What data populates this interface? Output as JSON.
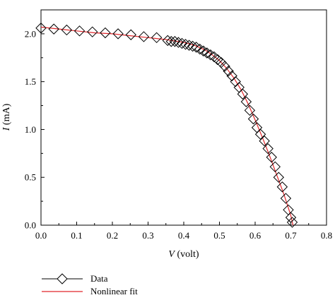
{
  "chart_data": {
    "type": "scatter",
    "xlabel_var": "V",
    "xlabel_unit": " (volt)",
    "ylabel_var": "I",
    "ylabel_unit": " (mA)",
    "xlim": [
      0.0,
      0.8
    ],
    "ylim": [
      0.0,
      2.25
    ],
    "x_ticks": [
      "0.0",
      "0.1",
      "0.2",
      "0.3",
      "0.4",
      "0.5",
      "0.6",
      "0.7",
      "0.8"
    ],
    "y_ticks": [
      "0.0",
      "0.5",
      "1.0",
      "1.5",
      "2.0"
    ],
    "grid": false,
    "legend_position": "bottom-left, below plot",
    "series": [
      {
        "name": "Data",
        "marker": "diamond",
        "color": "#000000",
        "points": [
          [
            0.0,
            2.06
          ],
          [
            0.036,
            2.05
          ],
          [
            0.072,
            2.04
          ],
          [
            0.108,
            2.03
          ],
          [
            0.144,
            2.02
          ],
          [
            0.18,
            2.01
          ],
          [
            0.216,
            2.0
          ],
          [
            0.252,
            1.99
          ],
          [
            0.288,
            1.97
          ],
          [
            0.324,
            1.96
          ],
          [
            0.355,
            1.93
          ],
          [
            0.365,
            1.92
          ],
          [
            0.375,
            1.92
          ],
          [
            0.385,
            1.91
          ],
          [
            0.395,
            1.9
          ],
          [
            0.405,
            1.89
          ],
          [
            0.415,
            1.88
          ],
          [
            0.425,
            1.87
          ],
          [
            0.435,
            1.86
          ],
          [
            0.445,
            1.84
          ],
          [
            0.455,
            1.82
          ],
          [
            0.465,
            1.8
          ],
          [
            0.475,
            1.78
          ],
          [
            0.485,
            1.76
          ],
          [
            0.495,
            1.73
          ],
          [
            0.505,
            1.7
          ],
          [
            0.515,
            1.66
          ],
          [
            0.525,
            1.61
          ],
          [
            0.535,
            1.56
          ],
          [
            0.545,
            1.5
          ],
          [
            0.555,
            1.44
          ],
          [
            0.565,
            1.37
          ],
          [
            0.575,
            1.29
          ],
          [
            0.585,
            1.2
          ],
          [
            0.595,
            1.11
          ],
          [
            0.605,
            1.02
          ],
          [
            0.615,
            0.95
          ],
          [
            0.626,
            0.88
          ],
          [
            0.636,
            0.8
          ],
          [
            0.646,
            0.71
          ],
          [
            0.656,
            0.61
          ],
          [
            0.666,
            0.5
          ],
          [
            0.676,
            0.4
          ],
          [
            0.686,
            0.28
          ],
          [
            0.693,
            0.16
          ],
          [
            0.7,
            0.08
          ],
          [
            0.704,
            0.03
          ]
        ]
      },
      {
        "name": "Nonlinear fit",
        "marker": "none",
        "color": "#e0262a",
        "points": [
          [
            0.0,
            2.07
          ],
          [
            0.05,
            2.05
          ],
          [
            0.1,
            2.03
          ],
          [
            0.15,
            2.01
          ],
          [
            0.2,
            2.0
          ],
          [
            0.25,
            1.98
          ],
          [
            0.3,
            1.96
          ],
          [
            0.35,
            1.94
          ],
          [
            0.4,
            1.91
          ],
          [
            0.43,
            1.88
          ],
          [
            0.46,
            1.83
          ],
          [
            0.48,
            1.78
          ],
          [
            0.5,
            1.72
          ],
          [
            0.52,
            1.64
          ],
          [
            0.54,
            1.54
          ],
          [
            0.56,
            1.42
          ],
          [
            0.58,
            1.27
          ],
          [
            0.6,
            1.1
          ],
          [
            0.62,
            0.92
          ],
          [
            0.64,
            0.73
          ],
          [
            0.66,
            0.53
          ],
          [
            0.68,
            0.33
          ],
          [
            0.7,
            0.1
          ],
          [
            0.706,
            0.0
          ]
        ]
      }
    ]
  }
}
